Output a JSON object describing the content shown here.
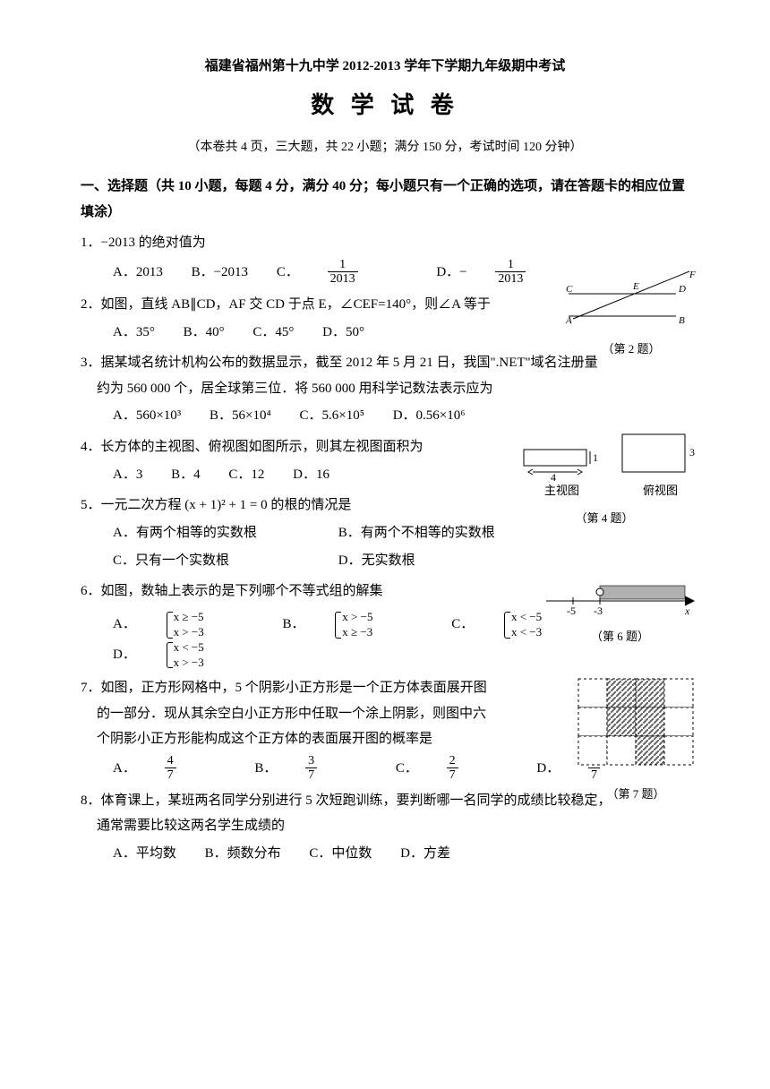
{
  "header": {
    "line1": "福建省福州第十九中学 2012-2013 学年下学期九年级期中考试",
    "title": "数 学 试 卷",
    "meta": "（本卷共 4 页，三大题，共 22 小题；满分 150 分，考试时间 120 分钟）"
  },
  "section1": {
    "title": "一、选择题（共 10 小题，每题 4 分，满分 40 分；每小题只有一个正确的选项，请在答题卡的相应位置填涂）"
  },
  "q1": {
    "text": "1．−2013 的绝对值为",
    "A": "A．2013",
    "B": "B．−2013",
    "C_label": "C．",
    "C_num": "1",
    "C_den": "2013",
    "D_label": "D．−",
    "D_num": "1",
    "D_den": "2013"
  },
  "q2": {
    "text": "2．如图，直线 AB∥CD，AF 交 CD 于点 E，∠CEF=140°，则∠A 等于",
    "A": "A．35°",
    "B": "B．40°",
    "C": "C．45°",
    "D": "D．50°",
    "caption": "（第 2 题）",
    "labels": {
      "A": "A",
      "B": "B",
      "C": "C",
      "D": "D",
      "E": "E",
      "F": "F"
    }
  },
  "q3": {
    "line1": "3．据某域名统计机构公布的数据显示，截至 2012 年 5 月 21 日，我国\".NET\"域名注册量",
    "line2": "约为 560 000 个，居全球第三位．将 560 000 用科学记数法表示应为",
    "A": "A．560×10³",
    "B": "B．56×10⁴",
    "C": "C．5.6×10⁵",
    "D": "D．0.56×10⁶"
  },
  "q4": {
    "text": "4．长方体的主视图、俯视图如图所示，则其左视图面积为",
    "A": "A．3",
    "B": "B．4",
    "C": "C．12",
    "D": "D．16",
    "caption": "（第 4 题）",
    "view1_label": "主视图",
    "view2_label": "俯视图",
    "dims": {
      "w": "4",
      "h1": "1",
      "h2": "3"
    }
  },
  "q5": {
    "text": "5．一元二次方程 (x + 1)² + 1 = 0 的根的情况是",
    "A": "A．有两个相等的实数根",
    "B": "B．有两个不相等的实数根",
    "C": "C．只有一个实数根",
    "D": "D．无实数根"
  },
  "q6": {
    "text": "6．如图，数轴上表示的是下列哪个不等式组的解集",
    "A_label": "A．",
    "A1": "x ≥ −5",
    "A2": "x > −3",
    "B_label": "B．",
    "B1": "x > −5",
    "B2": "x ≥ −3",
    "C_label": "C．",
    "C1": "x < −5",
    "C2": "x < −3",
    "D_label": "D．",
    "D1": "x < −5",
    "D2": "x > −3",
    "caption": "（第 6 题）",
    "ticks": {
      "a": "-5",
      "b": "-3",
      "x": "x"
    }
  },
  "q7": {
    "line1": "7．如图，正方形网格中，5 个阴影小正方形是一个正方体表面展开图",
    "line2": "的一部分．现从其余空白小正方形中任取一个涂上阴影，则图中六",
    "line3": "个阴影小正方形能构成这个正方体的表面展开图的概率是",
    "A_label": "A．",
    "A_num": "4",
    "A_den": "7",
    "B_label": "B．",
    "B_num": "3",
    "B_den": "7",
    "C_label": "C．",
    "C_num": "2",
    "C_den": "7",
    "D_label": "D．",
    "D_num": "1",
    "D_den": "7",
    "caption": "（第 7 题）",
    "grid": {
      "cols": 4,
      "rows": 3,
      "shaded": [
        [
          0,
          1
        ],
        [
          0,
          2
        ],
        [
          1,
          1
        ],
        [
          1,
          2
        ],
        [
          2,
          2
        ]
      ]
    }
  },
  "q8": {
    "line1": "8．体育课上，某班两名同学分别进行 5 次短跑训练，要判断哪一名同学的成绩比较稳定，",
    "line2": "通常需要比较这两名学生成绩的",
    "A": "A．平均数",
    "B": "B．频数分布",
    "C": "C．中位数",
    "D": "D．方差"
  }
}
